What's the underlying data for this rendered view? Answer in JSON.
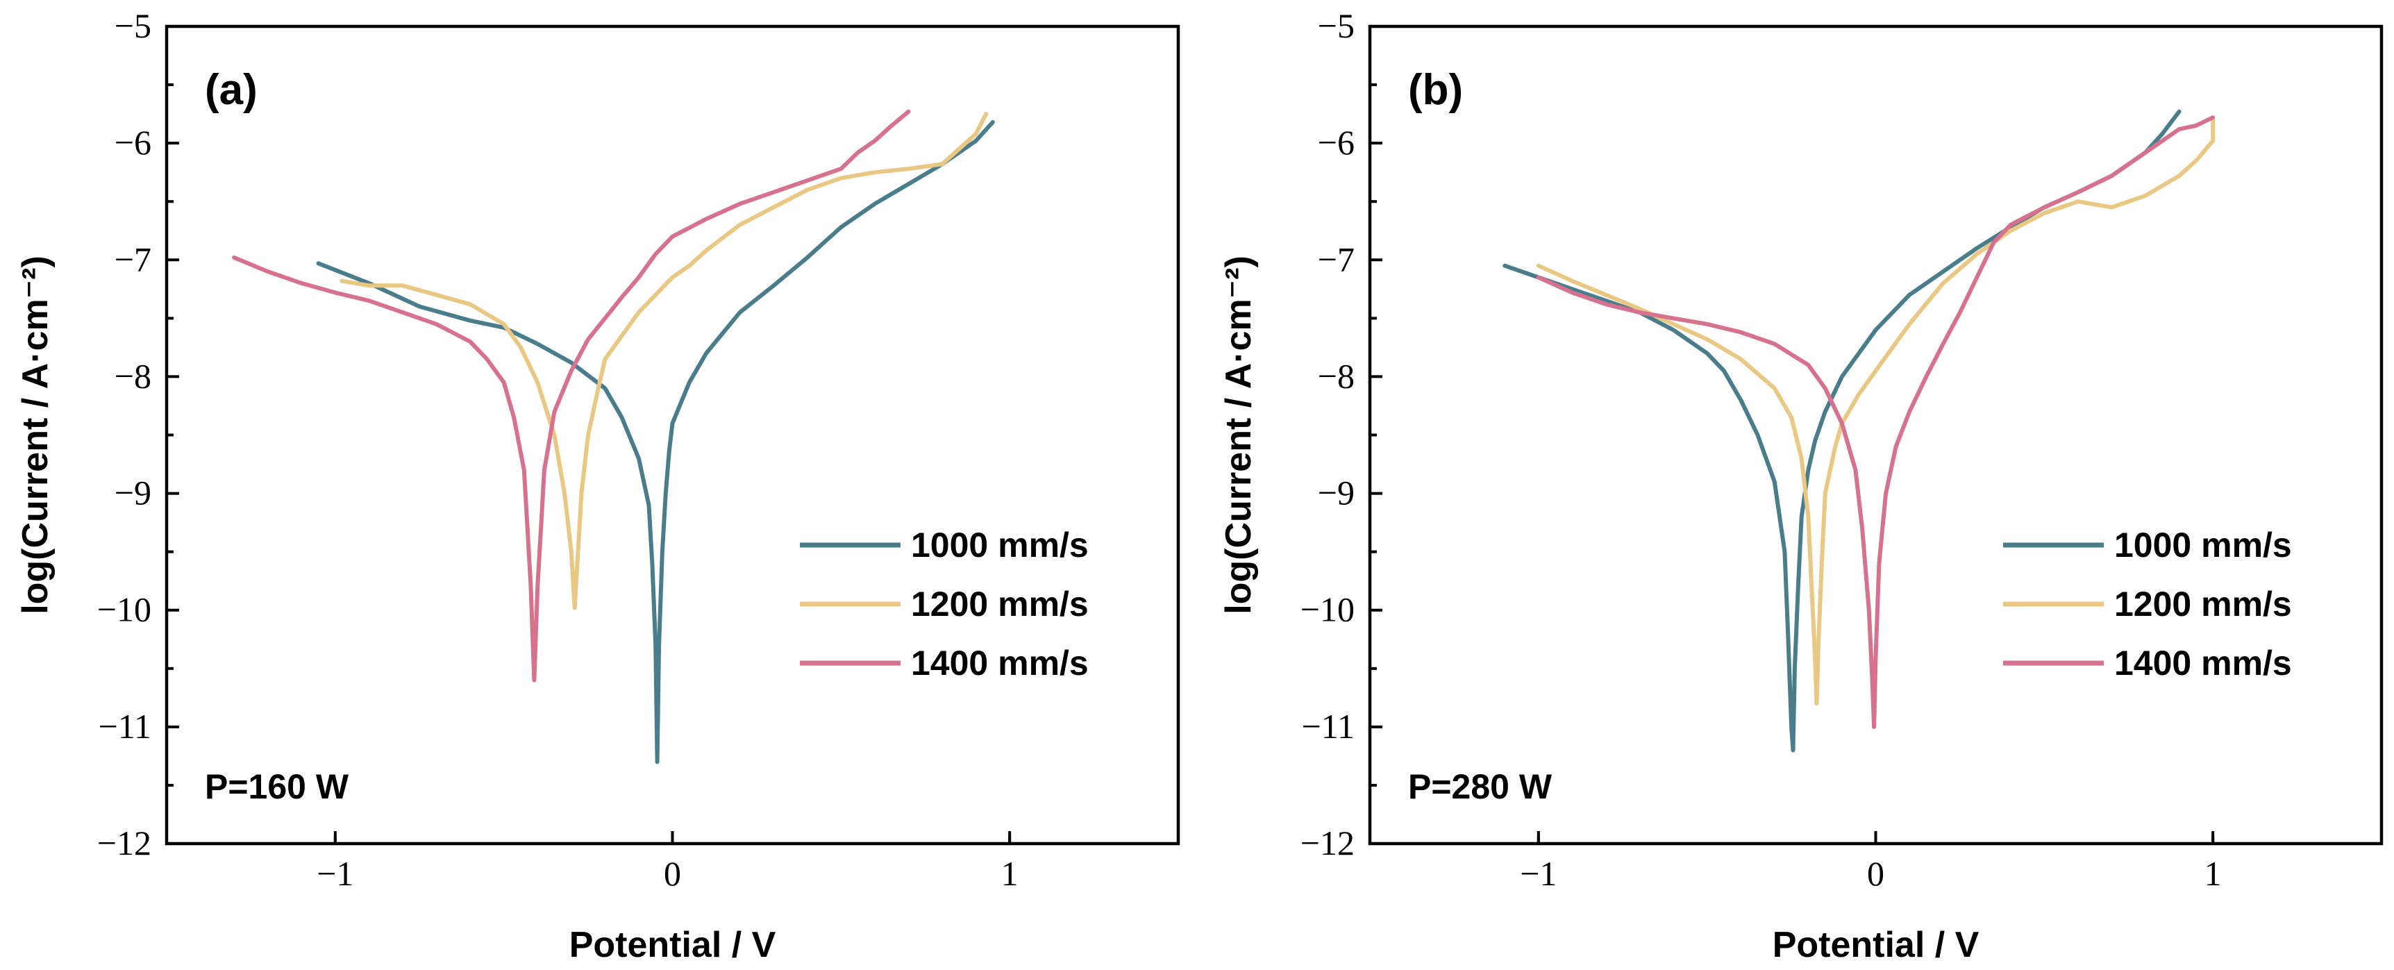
{
  "chart_data": [
    {
      "type": "line",
      "panel_label": "(a)",
      "annotation": "P=160 W",
      "xlabel": "Potential / V",
      "ylabel": "log(Current / A·cm⁻²)",
      "xlim": [
        -1.5,
        1.5
      ],
      "ylim": [
        -12,
        -5
      ],
      "xticks": [
        -1,
        0,
        1
      ],
      "xtick_labels": [
        "−1",
        "0",
        "1"
      ],
      "yticks": [
        -12,
        -11,
        -10,
        -9,
        -8,
        -7,
        -6,
        -5
      ],
      "ytick_labels": [
        "−12",
        "−11",
        "−10",
        "−9",
        "−8",
        "−7",
        "−6",
        "−5"
      ],
      "legend_position": "lower-right",
      "series": [
        {
          "name": "1000 mm/s",
          "color": "#4a7d8c",
          "x": [
            -1.05,
            -0.9,
            -0.75,
            -0.6,
            -0.5,
            -0.4,
            -0.3,
            -0.2,
            -0.15,
            -0.1,
            -0.07,
            -0.06,
            -0.05,
            -0.045,
            -0.04,
            -0.03,
            -0.02,
            -0.01,
            0.0,
            0.05,
            0.1,
            0.2,
            0.3,
            0.4,
            0.5,
            0.6,
            0.7,
            0.8,
            0.9,
            0.95
          ],
          "y": [
            -7.03,
            -7.2,
            -7.4,
            -7.52,
            -7.58,
            -7.72,
            -7.88,
            -8.1,
            -8.35,
            -8.7,
            -9.1,
            -9.6,
            -10.3,
            -11.3,
            -10.3,
            -9.5,
            -9.0,
            -8.65,
            -8.4,
            -8.05,
            -7.8,
            -7.45,
            -7.22,
            -6.98,
            -6.72,
            -6.52,
            -6.35,
            -6.18,
            -5.98,
            -5.82
          ]
        },
        {
          "name": "1200 mm/s",
          "color": "#e8c882",
          "x": [
            -0.98,
            -0.9,
            -0.8,
            -0.7,
            -0.6,
            -0.5,
            -0.45,
            -0.4,
            -0.35,
            -0.32,
            -0.3,
            -0.29,
            -0.28,
            -0.27,
            -0.25,
            -0.22,
            -0.2,
            -0.15,
            -0.1,
            -0.05,
            0.0,
            0.05,
            0.1,
            0.2,
            0.3,
            0.4,
            0.5,
            0.6,
            0.7,
            0.8,
            0.9,
            0.93
          ],
          "y": [
            -7.18,
            -7.22,
            -7.22,
            -7.3,
            -7.38,
            -7.55,
            -7.75,
            -8.05,
            -8.5,
            -9.0,
            -9.5,
            -9.98,
            -9.5,
            -9.0,
            -8.5,
            -8.1,
            -7.85,
            -7.65,
            -7.45,
            -7.3,
            -7.15,
            -7.05,
            -6.92,
            -6.7,
            -6.55,
            -6.4,
            -6.3,
            -6.25,
            -6.22,
            -6.18,
            -5.92,
            -5.75
          ]
        },
        {
          "name": "1400 mm/s",
          "color": "#d6718e",
          "x": [
            -1.3,
            -1.2,
            -1.1,
            -1.0,
            -0.9,
            -0.8,
            -0.7,
            -0.6,
            -0.55,
            -0.5,
            -0.47,
            -0.44,
            -0.43,
            -0.42,
            -0.41,
            -0.4,
            -0.39,
            -0.38,
            -0.35,
            -0.3,
            -0.25,
            -0.2,
            -0.15,
            -0.1,
            -0.05,
            0.0,
            0.1,
            0.2,
            0.3,
            0.4,
            0.5,
            0.55,
            0.6,
            0.65,
            0.7
          ],
          "y": [
            -6.98,
            -7.1,
            -7.2,
            -7.28,
            -7.35,
            -7.45,
            -7.55,
            -7.7,
            -7.85,
            -8.05,
            -8.35,
            -8.8,
            -9.3,
            -9.8,
            -10.6,
            -9.8,
            -9.3,
            -8.8,
            -8.3,
            -7.95,
            -7.68,
            -7.5,
            -7.32,
            -7.15,
            -6.95,
            -6.8,
            -6.65,
            -6.52,
            -6.42,
            -6.32,
            -6.22,
            -6.08,
            -5.98,
            -5.85,
            -5.73
          ]
        }
      ]
    },
    {
      "type": "line",
      "panel_label": "(b)",
      "annotation": "P=280 W",
      "xlabel": "Potential / V",
      "ylabel": "log(Current / A·cm⁻²)",
      "xlim": [
        -1.5,
        1.5
      ],
      "ylim": [
        -12,
        -5
      ],
      "xticks": [
        -1,
        0,
        1
      ],
      "xtick_labels": [
        "−1",
        "0",
        "1"
      ],
      "yticks": [
        -12,
        -11,
        -10,
        -9,
        -8,
        -7,
        -6,
        -5
      ],
      "ytick_labels": [
        "−12",
        "−11",
        "−10",
        "−9",
        "−8",
        "−7",
        "−6",
        "−5"
      ],
      "legend_position": "lower-right",
      "series": [
        {
          "name": "1000 mm/s",
          "color": "#4a7d8c",
          "x": [
            -1.1,
            -1.0,
            -0.9,
            -0.8,
            -0.7,
            -0.6,
            -0.5,
            -0.45,
            -0.4,
            -0.35,
            -0.3,
            -0.27,
            -0.26,
            -0.25,
            -0.245,
            -0.24,
            -0.23,
            -0.22,
            -0.2,
            -0.18,
            -0.15,
            -0.1,
            -0.05,
            0.0,
            0.1,
            0.2,
            0.3,
            0.4,
            0.5,
            0.6,
            0.7,
            0.8,
            0.85,
            0.9
          ],
          "y": [
            -7.05,
            -7.15,
            -7.25,
            -7.35,
            -7.45,
            -7.6,
            -7.8,
            -7.95,
            -8.2,
            -8.5,
            -8.9,
            -9.5,
            -10.2,
            -11.0,
            -11.2,
            -10.5,
            -9.8,
            -9.2,
            -8.8,
            -8.55,
            -8.3,
            -8.0,
            -7.8,
            -7.6,
            -7.3,
            -7.1,
            -6.9,
            -6.72,
            -6.55,
            -6.42,
            -6.28,
            -6.08,
            -5.92,
            -5.73
          ]
        },
        {
          "name": "1200 mm/s",
          "color": "#e8c882",
          "x": [
            -1.0,
            -0.9,
            -0.8,
            -0.7,
            -0.6,
            -0.5,
            -0.4,
            -0.3,
            -0.25,
            -0.22,
            -0.2,
            -0.19,
            -0.18,
            -0.175,
            -0.17,
            -0.16,
            -0.15,
            -0.12,
            -0.1,
            -0.05,
            0.0,
            0.1,
            0.2,
            0.3,
            0.4,
            0.5,
            0.6,
            0.7,
            0.8,
            0.9,
            0.95,
            1.0,
            1.0
          ],
          "y": [
            -7.05,
            -7.18,
            -7.3,
            -7.42,
            -7.55,
            -7.68,
            -7.85,
            -8.1,
            -8.35,
            -8.7,
            -9.2,
            -9.8,
            -10.4,
            -10.8,
            -10.3,
            -9.6,
            -9.0,
            -8.6,
            -8.4,
            -8.15,
            -7.95,
            -7.55,
            -7.2,
            -6.95,
            -6.75,
            -6.6,
            -6.5,
            -6.55,
            -6.45,
            -6.28,
            -6.15,
            -5.98,
            -5.8
          ]
        },
        {
          "name": "1400 mm/s",
          "color": "#d6718e",
          "x": [
            -1.0,
            -0.9,
            -0.8,
            -0.7,
            -0.6,
            -0.5,
            -0.4,
            -0.3,
            -0.2,
            -0.15,
            -0.1,
            -0.06,
            -0.04,
            -0.02,
            -0.01,
            -0.005,
            0.0,
            0.01,
            0.03,
            0.06,
            0.1,
            0.15,
            0.2,
            0.25,
            0.3,
            0.35,
            0.4,
            0.5,
            0.6,
            0.7,
            0.8,
            0.9,
            0.95,
            1.0
          ],
          "y": [
            -7.15,
            -7.28,
            -7.38,
            -7.45,
            -7.5,
            -7.55,
            -7.62,
            -7.72,
            -7.9,
            -8.1,
            -8.4,
            -8.8,
            -9.3,
            -10.0,
            -10.6,
            -11.0,
            -10.4,
            -9.6,
            -9.0,
            -8.6,
            -8.3,
            -8.0,
            -7.72,
            -7.45,
            -7.15,
            -6.85,
            -6.7,
            -6.55,
            -6.42,
            -6.28,
            -6.08,
            -5.88,
            -5.85,
            -5.78
          ]
        }
      ]
    }
  ]
}
